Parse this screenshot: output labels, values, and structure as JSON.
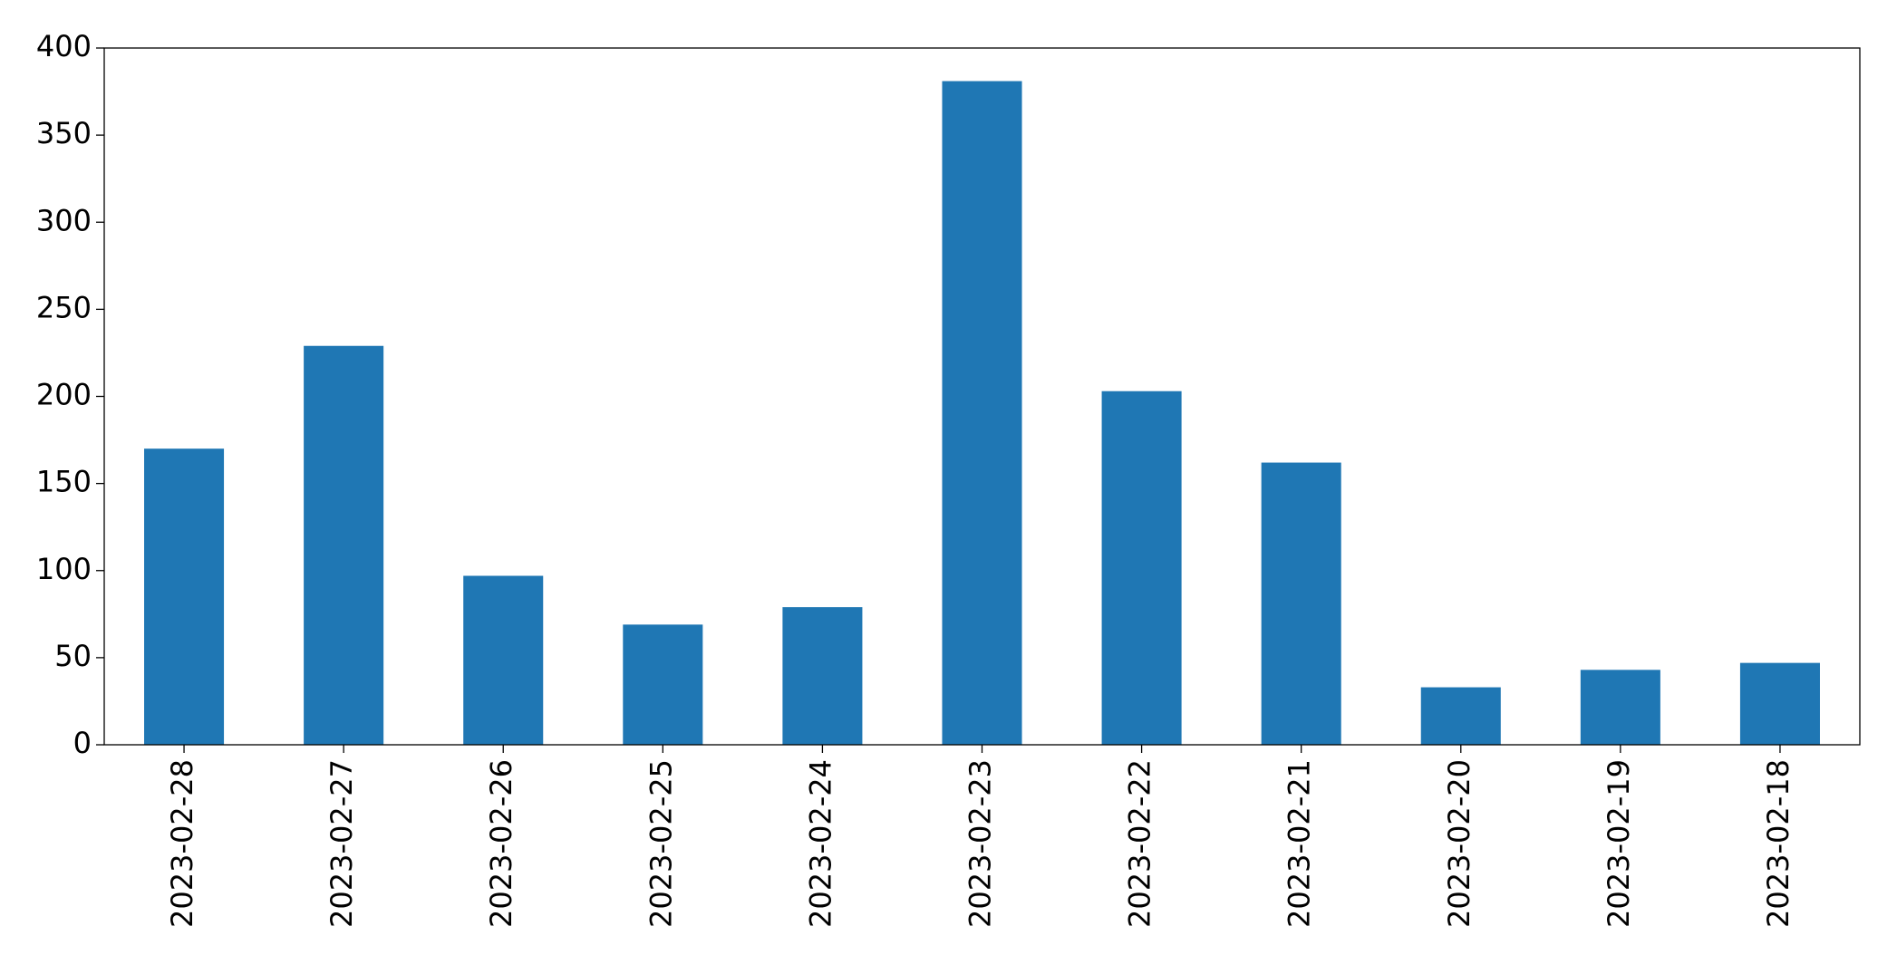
{
  "chart_data": {
    "type": "bar",
    "categories": [
      "2023-02-28",
      "2023-02-27",
      "2023-02-26",
      "2023-02-25",
      "2023-02-24",
      "2023-02-23",
      "2023-02-22",
      "2023-02-21",
      "2023-02-20",
      "2023-02-19",
      "2023-02-18"
    ],
    "values": [
      170,
      229,
      97,
      69,
      79,
      381,
      203,
      162,
      33,
      43,
      47
    ],
    "color": "#1f77b4",
    "ylim": [
      0,
      400
    ],
    "yticks": [
      0,
      50,
      100,
      150,
      200,
      250,
      300,
      350,
      400
    ],
    "grid": false
  }
}
